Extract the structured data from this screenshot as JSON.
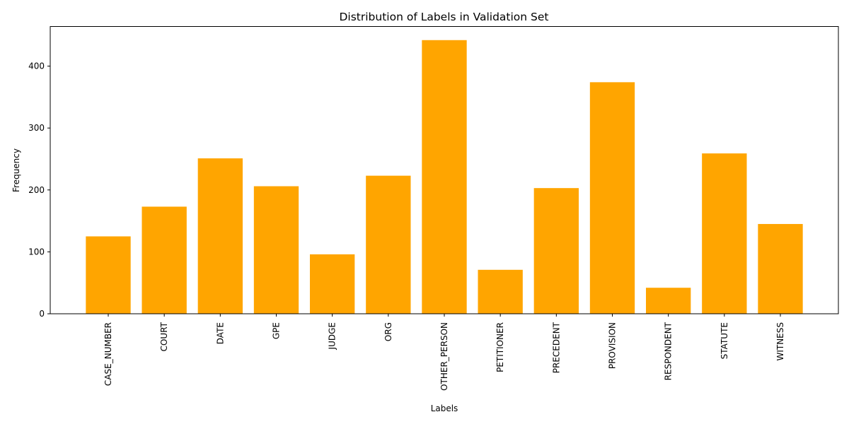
{
  "chart_data": {
    "type": "bar",
    "title": "Distribution of Labels in Validation Set",
    "xlabel": "Labels",
    "ylabel": "Frequency",
    "categories": [
      "CASE_NUMBER",
      "COURT",
      "DATE",
      "GPE",
      "JUDGE",
      "ORG",
      "OTHER_PERSON",
      "PETITIONER",
      "PRECEDENT",
      "PROVISION",
      "RESPONDENT",
      "STATUTE",
      "WITNESS"
    ],
    "values": [
      125,
      173,
      251,
      206,
      96,
      223,
      442,
      71,
      203,
      374,
      42,
      259,
      145
    ],
    "ylim": [
      0,
      464
    ],
    "yticks": [
      0,
      100,
      200,
      300,
      400
    ],
    "bar_color": "#ffa500",
    "grid": false,
    "legend": "none"
  }
}
